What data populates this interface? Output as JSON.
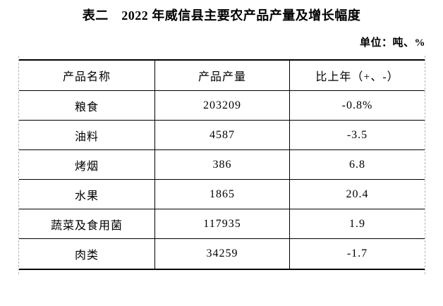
{
  "page": {
    "title": "表二　2022 年威信县主要农产品产量及增长幅度",
    "unit_note": "单位：吨、%"
  },
  "table": {
    "headers": [
      "产品名称",
      "产品产量",
      "比上年（+、-）"
    ],
    "rows": [
      {
        "name": "粮食",
        "output": "203209",
        "change": "-0.8%"
      },
      {
        "name": "油料",
        "output": "4587",
        "change": "-3.5"
      },
      {
        "name": "烤烟",
        "output": "386",
        "change": "6.8"
      },
      {
        "name": "水果",
        "output": "1865",
        "change": "20.4"
      },
      {
        "name": "蔬菜及食用菌",
        "output": "117935",
        "change": "1.9"
      },
      {
        "name": "肉类",
        "output": "34259",
        "change": "-1.7"
      }
    ]
  },
  "colors": {
    "text": "#000000",
    "rule": "#000000",
    "dashed_gridline": "#b3b3b3",
    "background": "#ffffff"
  }
}
